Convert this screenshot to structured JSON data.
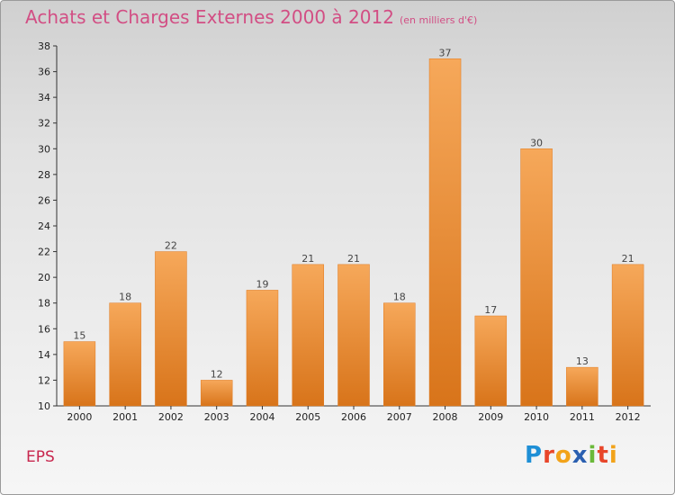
{
  "title": {
    "main": "Achats et Charges Externes 2000 à 2012",
    "sub": "(en milliers d'€)"
  },
  "commune": "EPS",
  "logo": {
    "text": "Proxiti",
    "letters": [
      {
        "ch": "P",
        "color": "#1e8fd6"
      },
      {
        "ch": "r",
        "color": "#e8462a"
      },
      {
        "ch": "o",
        "color": "#f2a31a"
      },
      {
        "ch": "x",
        "color": "#2a5fb0"
      },
      {
        "ch": "i",
        "color": "#6bb93a"
      },
      {
        "ch": "t",
        "color": "#e8462a"
      },
      {
        "ch": "i",
        "color": "#f2a31a"
      }
    ]
  },
  "chart_data": {
    "type": "bar",
    "title": "Achats et Charges Externes 2000 à 2012",
    "subtitle": "(en milliers d'€)",
    "categories": [
      "2000",
      "2001",
      "2002",
      "2003",
      "2004",
      "2005",
      "2006",
      "2007",
      "2008",
      "2009",
      "2010",
      "2011",
      "2012"
    ],
    "values": [
      15,
      18,
      22,
      12,
      19,
      21,
      21,
      18,
      37,
      17,
      30,
      13,
      21
    ],
    "ylim": [
      10,
      38
    ],
    "yticks": [
      10,
      12,
      14,
      16,
      18,
      20,
      22,
      24,
      26,
      28,
      30,
      32,
      34,
      36,
      38
    ],
    "grid": false,
    "bar_color": "#f28c28",
    "bar_color_top": "#f6a85a",
    "bar_color_bottom": "#d8741a"
  }
}
